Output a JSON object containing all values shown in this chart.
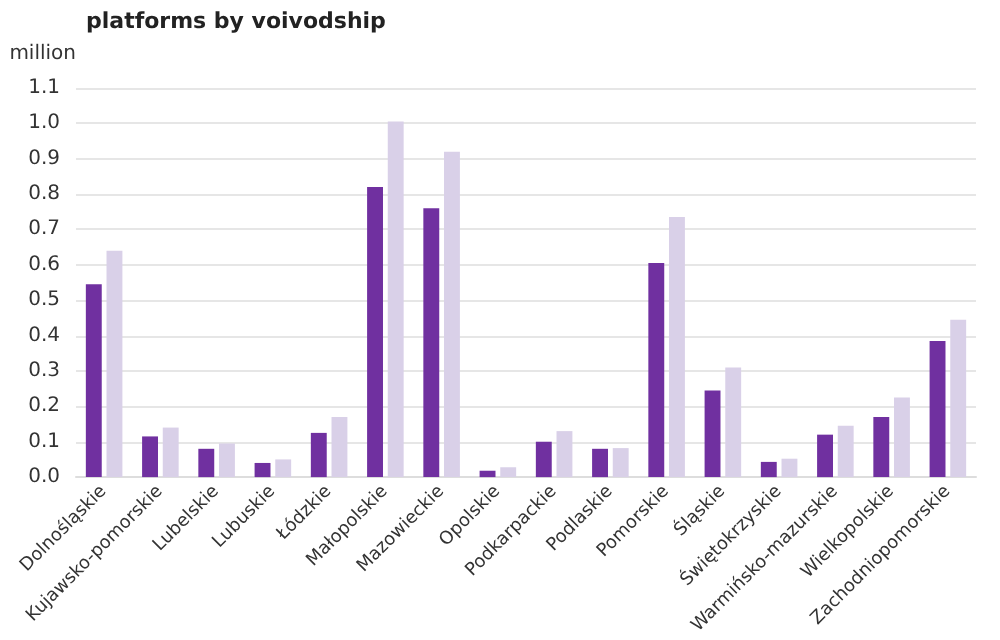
{
  "chart_data": {
    "type": "bar",
    "title": "platforms by voivodship",
    "ylabel": "million",
    "categories": [
      "Dolnośląskie",
      "Kujawsko-pomorskie",
      "Lubelskie",
      "Lubuskie",
      "Łódzkie",
      "Małopolskie",
      "Mazowieckie",
      "Opolskie",
      "Podkarpackie",
      "Podlaskie",
      "Pomorskie",
      "Śląskie",
      "Świętokrzyskie",
      "Warmińsko-mazurskie",
      "Wielkopolskie",
      "Zachodniopomorskie"
    ],
    "series": [
      {
        "color": "#7030a0",
        "values": [
          0.545,
          0.115,
          0.08,
          0.04,
          0.125,
          0.82,
          0.76,
          0.018,
          0.1,
          0.08,
          0.605,
          0.245,
          0.043,
          0.12,
          0.17,
          0.385
        ]
      },
      {
        "color": "#d9d0e8",
        "values": [
          0.64,
          0.14,
          0.095,
          0.05,
          0.17,
          1.005,
          0.92,
          0.028,
          0.13,
          0.082,
          0.735,
          0.31,
          0.052,
          0.145,
          0.225,
          0.445
        ]
      }
    ],
    "ylim": [
      0,
      1.1
    ],
    "yticks": [
      {
        "value": 0,
        "label": "0.0"
      },
      0.1,
      0.2,
      0.3,
      0.4,
      0.5,
      0.6,
      0.7,
      0.8,
      0.9,
      {
        "value": 1,
        "label": "1.0"
      },
      1.1
    ],
    "grid": "y"
  }
}
